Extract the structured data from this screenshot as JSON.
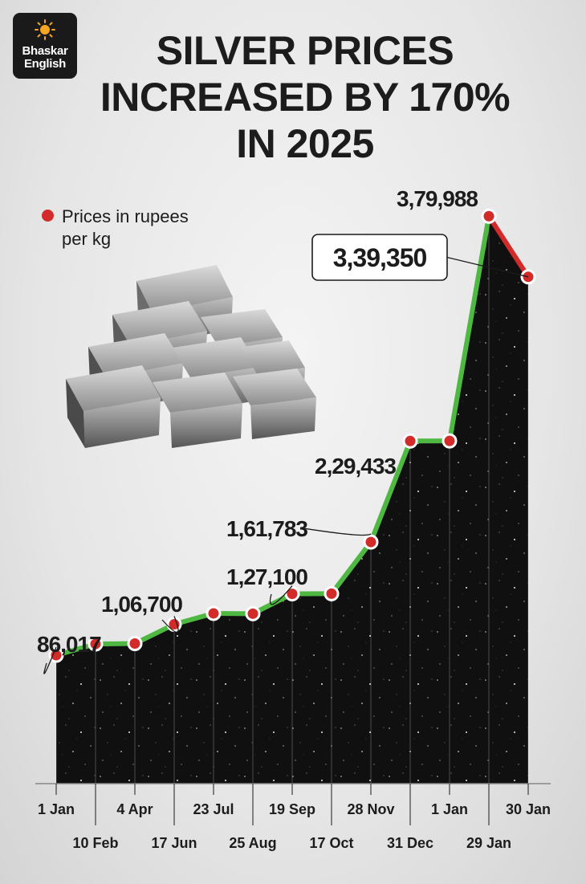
{
  "brand": {
    "line1": "Bhaskar",
    "line2": "English"
  },
  "title_lines": [
    "SILVER PRICES",
    "INCREASED BY 170%",
    "IN 2025"
  ],
  "legend_label": "Prices in rupees per kg",
  "colors": {
    "line": "#4fb843",
    "drop_line": "#d32a2a",
    "marker": "#d32a2a",
    "fill": "#111111",
    "accent": "#f5a623"
  },
  "chart_data": {
    "type": "area",
    "title": "SILVER PRICES INCREASED BY 170% IN 2025",
    "legend": [
      {
        "label": "Prices in rupees per kg",
        "marker": "red circle"
      }
    ],
    "x": [
      "1 Jan",
      "10 Feb",
      "4 Apr",
      "17 Jun",
      "23 Jul",
      "25 Aug",
      "19 Sep",
      "17 Oct",
      "28 Nov",
      "31 Dec",
      "1 Jan",
      "29 Jan",
      "30 Jan"
    ],
    "series": [
      {
        "name": "Prices in rupees per kg",
        "values": [
          86017,
          93500,
          93800,
          106700,
          114000,
          113800,
          127100,
          127200,
          161783,
          229433,
          229500,
          379988,
          339350
        ]
      }
    ],
    "data_labels": [
      {
        "index": 0,
        "text": "86,017"
      },
      {
        "index": 3,
        "text": "1,06,700"
      },
      {
        "index": 6,
        "text": "1,27,100"
      },
      {
        "index": 8,
        "text": "1,61,783"
      },
      {
        "index": 9,
        "text": "2,29,433"
      },
      {
        "index": 11,
        "text": "3,79,988"
      },
      {
        "index": 12,
        "text": "3,39,350",
        "boxed": true
      }
    ],
    "ylim": [
      0,
      400000
    ],
    "grid": false,
    "y_axis_shown": false
  }
}
